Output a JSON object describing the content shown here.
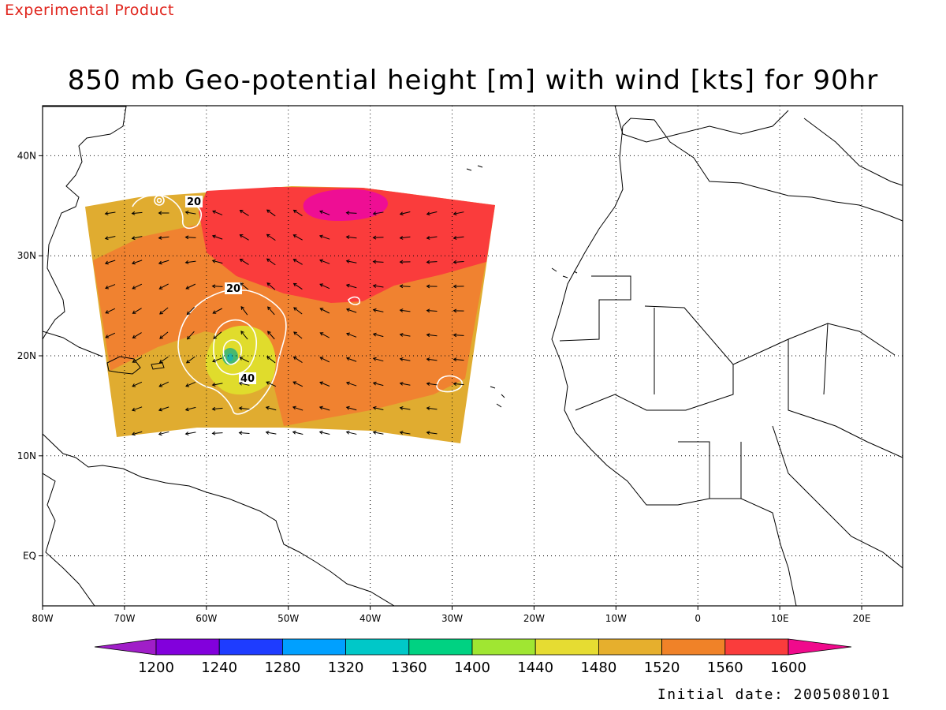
{
  "header": {
    "tag": "Experimental Product",
    "title": "850 mb Geo-potential height [m] with wind [kts] for 90hr"
  },
  "footer": {
    "initial_date": "Initial date: 2005080101"
  },
  "map": {
    "lon_range": [
      -80,
      25
    ],
    "lat_range": [
      -5,
      45
    ],
    "lon_ticks": [
      {
        "lon": -80,
        "label": "80W"
      },
      {
        "lon": -70,
        "label": "70W"
      },
      {
        "lon": -60,
        "label": "60W"
      },
      {
        "lon": -50,
        "label": "50W"
      },
      {
        "lon": -40,
        "label": "40W"
      },
      {
        "lon": -30,
        "label": "30W"
      },
      {
        "lon": -20,
        "label": "20W"
      },
      {
        "lon": -10,
        "label": "10W"
      },
      {
        "lon": 0,
        "label": "0"
      },
      {
        "lon": 10,
        "label": "10E"
      },
      {
        "lon": 20,
        "label": "20E"
      }
    ],
    "lat_ticks": [
      {
        "lat": 40,
        "label": "40N"
      },
      {
        "lat": 30,
        "label": "30N"
      },
      {
        "lat": 20,
        "label": "20N"
      },
      {
        "lat": 10,
        "label": "10N"
      },
      {
        "lat": 0,
        "label": "EQ"
      }
    ],
    "grid": "dotted",
    "colors": {
      "c1480": "#e0dc2c",
      "c1520": "#e0ac30",
      "c1560": "#f08230",
      "c1600": "#fa3c3c",
      "c1640": "#ee0e94",
      "isotach": "#ffffff",
      "land_outline": "#000000"
    },
    "isotach_labels": [
      "20",
      "20",
      "40"
    ]
  },
  "colorbar": {
    "labels": [
      "1200",
      "1240",
      "1280",
      "1320",
      "1360",
      "1400",
      "1440",
      "1480",
      "1520",
      "1560",
      "1600"
    ],
    "colors": [
      "#a01ec8",
      "#8200dc",
      "#1e3cff",
      "#00a0ff",
      "#00c8c8",
      "#00d282",
      "#a0e632",
      "#e6dc32",
      "#e6af2d",
      "#f08228",
      "#fa3c3c",
      "#f00a8c"
    ]
  }
}
